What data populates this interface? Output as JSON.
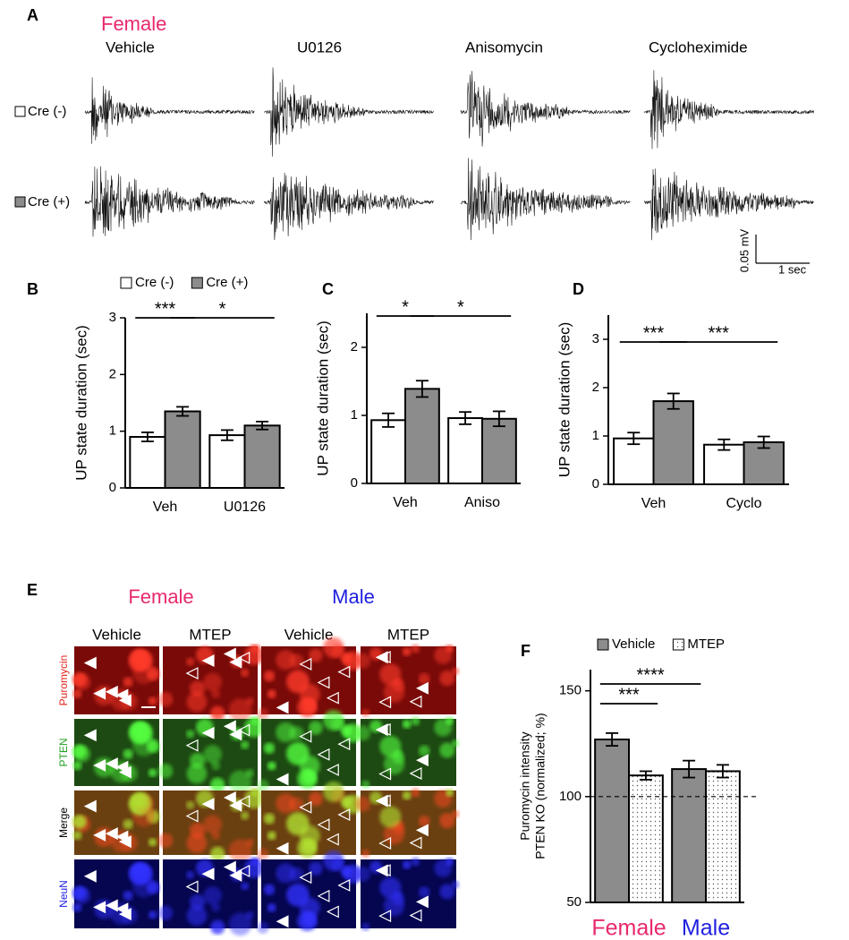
{
  "panel_labels": [
    "A",
    "B",
    "C",
    "D",
    "E",
    "F"
  ],
  "panel_a": {
    "sex": "Female",
    "conditions": [
      "Vehicle",
      "U0126",
      "Anisomycin",
      "Cycloheximide"
    ],
    "rows": [
      "Cre (-)",
      "Cre (+)"
    ],
    "scale_bar": {
      "y": "0.05 mV",
      "x": "1 sec"
    }
  },
  "panel_e": {
    "groups": [
      "Female",
      "Male"
    ],
    "columns": [
      "Vehicle",
      "MTEP",
      "Vehicle",
      "MTEP"
    ],
    "rows": [
      "Puromycin",
      "PTEN",
      "Merge",
      "NeuN"
    ]
  },
  "chart_data": [
    {
      "type": "bar",
      "ylabel": "UP state duration (sec)",
      "categories": [
        "Veh",
        "U0126"
      ],
      "series": [
        {
          "name": "Cre (-)",
          "color": "#ffffff",
          "values": [
            0.9,
            0.93
          ],
          "errors": [
            0.08,
            0.09
          ]
        },
        {
          "name": "Cre (+)",
          "color": "#8c8c8c",
          "values": [
            1.35,
            1.1
          ],
          "errors": [
            0.08,
            0.07
          ]
        }
      ],
      "ylim": [
        0,
        3
      ],
      "yticks": [
        0,
        1,
        2,
        3
      ],
      "legend": "top",
      "significance": [
        {
          "label": "***",
          "bars": [
            [
              0,
              0
            ],
            [
              0,
              1
            ]
          ]
        },
        {
          "label": "*",
          "bars": [
            [
              0,
              1
            ],
            [
              1,
              1
            ]
          ]
        }
      ]
    },
    {
      "type": "bar",
      "ylabel": "UP state duration (sec)",
      "categories": [
        "Veh",
        "Aniso"
      ],
      "series": [
        {
          "color": "#ffffff",
          "values": [
            0.93,
            0.96
          ],
          "errors": [
            0.1,
            0.09
          ]
        },
        {
          "color": "#8c8c8c",
          "values": [
            1.39,
            0.95
          ],
          "errors": [
            0.12,
            0.11
          ]
        }
      ],
      "ylim": [
        0,
        2.5
      ],
      "yticks": [
        0,
        1,
        2
      ],
      "significance": [
        {
          "label": "*",
          "bars": [
            [
              0,
              0
            ],
            [
              0,
              1
            ]
          ]
        },
        {
          "label": "*",
          "bars": [
            [
              0,
              1
            ],
            [
              1,
              1
            ]
          ]
        }
      ]
    },
    {
      "type": "bar",
      "ylabel": "UP state duration (sec)",
      "categories": [
        "Veh",
        "Cyclo"
      ],
      "series": [
        {
          "color": "#ffffff",
          "values": [
            0.95,
            0.82
          ],
          "errors": [
            0.12,
            0.11
          ]
        },
        {
          "color": "#8c8c8c",
          "values": [
            1.72,
            0.87
          ],
          "errors": [
            0.16,
            0.12
          ]
        }
      ],
      "ylim": [
        0,
        3.5
      ],
      "yticks": [
        0,
        1,
        2,
        3
      ],
      "significance": [
        {
          "label": "***",
          "bars": [
            [
              0,
              0
            ],
            [
              0,
              1
            ]
          ]
        },
        {
          "label": "***",
          "bars": [
            [
              0,
              1
            ],
            [
              1,
              1
            ]
          ]
        }
      ]
    },
    {
      "type": "bar",
      "ylabel": [
        "Puromycin intensity",
        "PTEN KO (normalized; %)"
      ],
      "categories": [
        "Female",
        "Male"
      ],
      "category_colors": [
        "#e8286e",
        "#1f1fe0"
      ],
      "series": [
        {
          "name": "Vehicle",
          "color": "#8c8c8c",
          "values": [
            127,
            113
          ],
          "errors": [
            3,
            4
          ]
        },
        {
          "name": "MTEP",
          "color": "#ffffff",
          "pattern": "dots",
          "values": [
            110,
            112
          ],
          "errors": [
            2,
            3
          ]
        }
      ],
      "ylim": [
        50,
        160
      ],
      "yticks": [
        50,
        100,
        150
      ],
      "reference_line": 100,
      "legend": "top",
      "significance": [
        {
          "label": "***",
          "bars": [
            [
              0,
              0
            ],
            [
              0,
              1
            ]
          ]
        },
        {
          "label": "****",
          "bars": [
            [
              0,
              0
            ],
            [
              1,
              0
            ]
          ]
        }
      ]
    }
  ]
}
